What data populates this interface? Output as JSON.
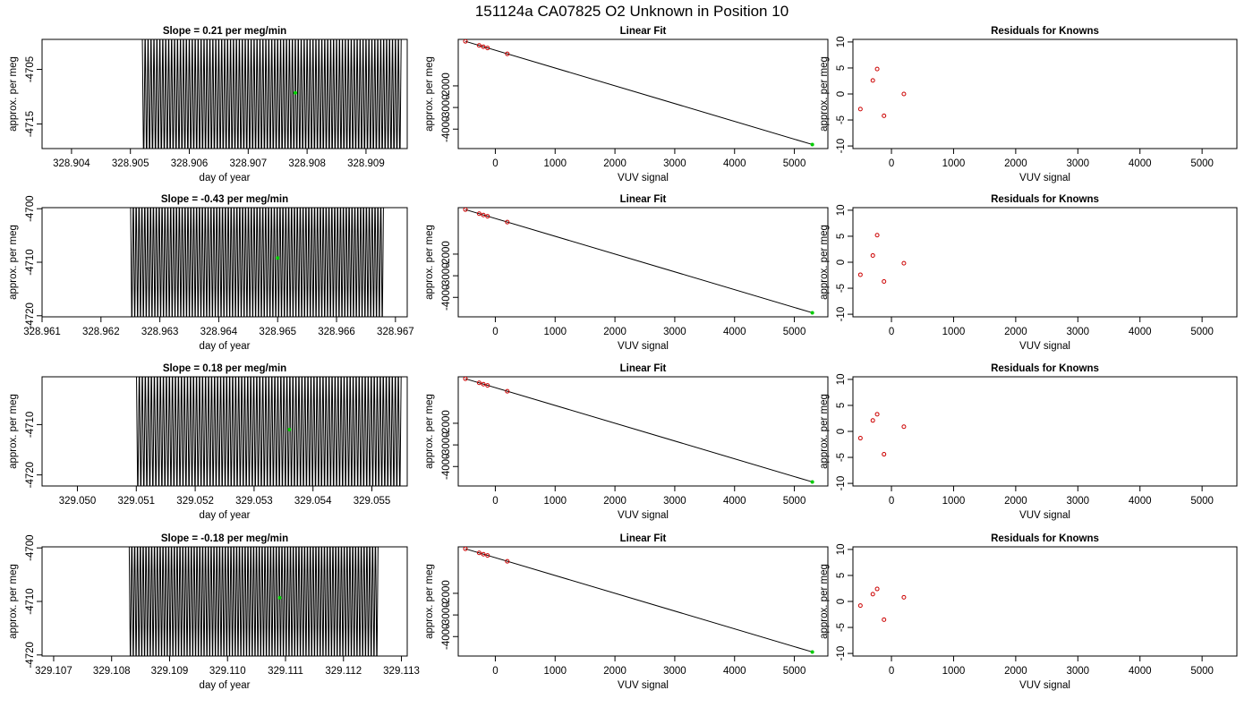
{
  "page_title": "151124a      CA07825    O2 Unknown in Position  10",
  "colors": {
    "ink": "#000000",
    "known_points": "#cc0000",
    "unknown_point": "#00cc00"
  },
  "chart_data": [
    {
      "type": "line",
      "row": 1,
      "panel": "timeseries",
      "title": "Slope =  0.21  per meg/min",
      "xlabel": "day of year",
      "ylabel": "approx. per meg",
      "xlim": [
        328.9035,
        328.9097
      ],
      "ylim": [
        -4719.5,
        -4699.5
      ],
      "xticks": [
        328.904,
        328.905,
        328.906,
        328.907,
        328.908,
        328.909
      ],
      "xtick_labels": [
        "328.904",
        "328.905",
        "328.906",
        "328.907",
        "328.908",
        "328.909"
      ],
      "yticks": [
        -4705,
        -4715
      ],
      "ytick_labels": [
        "-4705",
        "-4715"
      ],
      "series_start": 328.9052,
      "series_end": 328.9096,
      "series_mean": -4710.5,
      "series_amplitude": 14,
      "oscillations": 88,
      "unknown_point": {
        "x": 328.9078,
        "y": -4709.3
      }
    },
    {
      "type": "scatter",
      "row": 1,
      "panel": "linear_fit",
      "title": "Linear Fit",
      "xlabel": "VUV signal",
      "ylabel": "approx. per meg",
      "xlim": [
        -620,
        5560
      ],
      "ylim": [
        -4900,
        150
      ],
      "xticks": [
        0,
        1000,
        2000,
        3000,
        4000,
        5000
      ],
      "xtick_labels": [
        "0",
        "1000",
        "2000",
        "3000",
        "4000",
        "5000"
      ],
      "yticks": [
        -2000,
        -3000,
        -4000
      ],
      "ytick_labels": [
        "-2000",
        "-3000",
        "-4000"
      ],
      "fit_line": {
        "x": [
          -500,
          5300
        ],
        "y": [
          60,
          -4712
        ]
      },
      "known_points": {
        "x": [
          -500,
          -270,
          -200,
          -130,
          200
        ],
        "y": [
          60,
          -130,
          -190,
          -250,
          -520
        ]
      },
      "unknown_point": {
        "x": 5300,
        "y": -4712
      }
    },
    {
      "type": "scatter",
      "row": 1,
      "panel": "residuals",
      "title": "Residuals for Knowns",
      "xlabel": "VUV signal",
      "ylabel": "approx. per meg",
      "xlim": [
        -620,
        5560
      ],
      "ylim": [
        -10.5,
        10.5
      ],
      "xticks": [
        0,
        1000,
        2000,
        3000,
        4000,
        5000
      ],
      "xtick_labels": [
        "0",
        "1000",
        "2000",
        "3000",
        "4000",
        "5000"
      ],
      "yticks": [
        10,
        5,
        0,
        -5,
        -10
      ],
      "ytick_labels": [
        "10",
        "5",
        "0",
        "-5",
        "-10"
      ],
      "x": [
        -500,
        -300,
        -230,
        -120,
        200
      ],
      "y": [
        -2.9,
        2.6,
        4.8,
        -4.2,
        0.0
      ]
    },
    {
      "type": "line",
      "row": 2,
      "panel": "timeseries",
      "title": "Slope =  -0.43  per meg/min",
      "xlabel": "day of year",
      "ylabel": "approx. per meg",
      "xlim": [
        328.961,
        328.9672
      ],
      "ylim": [
        -4720.2,
        -4699.8
      ],
      "xticks": [
        328.961,
        328.962,
        328.963,
        328.964,
        328.965,
        328.966,
        328.967
      ],
      "xtick_labels": [
        "328.961",
        "328.962",
        "328.963",
        "328.964",
        "328.965",
        "328.966",
        "328.967"
      ],
      "yticks": [
        -4700,
        -4710,
        -4720
      ],
      "ytick_labels": [
        "-4700",
        "-4710",
        "-4720"
      ],
      "series_start": 328.9625,
      "series_end": 328.9668,
      "series_mean": -4709.5,
      "series_amplitude": 14,
      "oscillations": 88,
      "unknown_point": {
        "x": 328.965,
        "y": -4709.2
      }
    },
    {
      "type": "scatter",
      "row": 2,
      "panel": "linear_fit",
      "title": "Linear Fit",
      "xlabel": "VUV signal",
      "ylabel": "approx. per meg",
      "xlim": [
        -620,
        5560
      ],
      "ylim": [
        -4900,
        150
      ],
      "xticks": [
        0,
        1000,
        2000,
        3000,
        4000,
        5000
      ],
      "xtick_labels": [
        "0",
        "1000",
        "2000",
        "3000",
        "4000",
        "5000"
      ],
      "yticks": [
        -2000,
        -3000,
        -4000
      ],
      "ytick_labels": [
        "-2000",
        "-3000",
        "-4000"
      ],
      "fit_line": {
        "x": [
          -500,
          5300
        ],
        "y": [
          60,
          -4712
        ]
      },
      "known_points": {
        "x": [
          -500,
          -270,
          -200,
          -130,
          200
        ],
        "y": [
          60,
          -130,
          -190,
          -250,
          -520
        ]
      },
      "unknown_point": {
        "x": 5300,
        "y": -4712
      }
    },
    {
      "type": "scatter",
      "row": 2,
      "panel": "residuals",
      "title": "Residuals for Knowns",
      "xlabel": "VUV signal",
      "ylabel": "approx. per meg",
      "xlim": [
        -620,
        5560
      ],
      "ylim": [
        -10.5,
        10.5
      ],
      "xticks": [
        0,
        1000,
        2000,
        3000,
        4000,
        5000
      ],
      "xtick_labels": [
        "0",
        "1000",
        "2000",
        "3000",
        "4000",
        "5000"
      ],
      "yticks": [
        10,
        5,
        0,
        -5,
        -10
      ],
      "ytick_labels": [
        "10",
        "5",
        "0",
        "-5",
        "-10"
      ],
      "x": [
        -500,
        -300,
        -230,
        -120,
        200
      ],
      "y": [
        -2.4,
        1.3,
        5.2,
        -3.7,
        -0.2
      ]
    },
    {
      "type": "line",
      "row": 3,
      "panel": "timeseries",
      "title": "Slope =  0.18  per meg/min",
      "xlabel": "day of year",
      "ylabel": "approx. per meg",
      "xlim": [
        329.0494,
        329.0556
      ],
      "ylim": [
        -4722.2,
        -4700.5
      ],
      "xticks": [
        329.05,
        329.051,
        329.052,
        329.053,
        329.054,
        329.055
      ],
      "xtick_labels": [
        "329.050",
        "329.051",
        "329.052",
        "329.053",
        "329.054",
        "329.055"
      ],
      "yticks": [
        -4710,
        -4720
      ],
      "ytick_labels": [
        "-4710",
        "-4720"
      ],
      "series_start": 329.051,
      "series_end": 329.0555,
      "series_mean": -4711.5,
      "series_amplitude": 15,
      "oscillations": 88,
      "unknown_point": {
        "x": 329.0536,
        "y": -4711.0
      }
    },
    {
      "type": "scatter",
      "row": 3,
      "panel": "linear_fit",
      "title": "Linear Fit",
      "xlabel": "VUV signal",
      "ylabel": "approx. per meg",
      "xlim": [
        -620,
        5560
      ],
      "ylim": [
        -4900,
        150
      ],
      "xticks": [
        0,
        1000,
        2000,
        3000,
        4000,
        5000
      ],
      "xtick_labels": [
        "0",
        "1000",
        "2000",
        "3000",
        "4000",
        "5000"
      ],
      "yticks": [
        -2000,
        -3000,
        -4000
      ],
      "ytick_labels": [
        "-2000",
        "-3000",
        "-4000"
      ],
      "fit_line": {
        "x": [
          -500,
          5300
        ],
        "y": [
          60,
          -4712
        ]
      },
      "known_points": {
        "x": [
          -500,
          -270,
          -200,
          -130,
          200
        ],
        "y": [
          60,
          -130,
          -190,
          -250,
          -520
        ]
      },
      "unknown_point": {
        "x": 5300,
        "y": -4712
      }
    },
    {
      "type": "scatter",
      "row": 3,
      "panel": "residuals",
      "title": "Residuals for Knowns",
      "xlabel": "VUV signal",
      "ylabel": "approx. per meg",
      "xlim": [
        -620,
        5560
      ],
      "ylim": [
        -10.5,
        10.5
      ],
      "xticks": [
        0,
        1000,
        2000,
        3000,
        4000,
        5000
      ],
      "xtick_labels": [
        "0",
        "1000",
        "2000",
        "3000",
        "4000",
        "5000"
      ],
      "yticks": [
        10,
        5,
        0,
        -5,
        -10
      ],
      "ytick_labels": [
        "10",
        "5",
        "0",
        "-5",
        "-10"
      ],
      "x": [
        -500,
        -300,
        -230,
        -120,
        200
      ],
      "y": [
        -1.3,
        2.1,
        3.3,
        -4.4,
        0.9
      ]
    },
    {
      "type": "line",
      "row": 4,
      "panel": "timeseries",
      "title": "Slope =  -0.18  per meg/min",
      "xlabel": "day of year",
      "ylabel": "approx. per meg",
      "xlim": [
        329.1068,
        329.1131
      ],
      "ylim": [
        -4720.2,
        -4699.8
      ],
      "xticks": [
        329.107,
        329.108,
        329.109,
        329.11,
        329.111,
        329.112,
        329.113
      ],
      "xtick_labels": [
        "329.107",
        "329.108",
        "329.109",
        "329.110",
        "329.111",
        "329.112",
        "329.113"
      ],
      "yticks": [
        -4700,
        -4710,
        -4720
      ],
      "ytick_labels": [
        "-4700",
        "-4710",
        "-4720"
      ],
      "series_start": 329.1083,
      "series_end": 329.1126,
      "series_mean": -4709.5,
      "series_amplitude": 14,
      "oscillations": 88,
      "unknown_point": {
        "x": 329.1109,
        "y": -4709.3
      }
    },
    {
      "type": "scatter",
      "row": 4,
      "panel": "linear_fit",
      "title": "Linear Fit",
      "xlabel": "VUV signal",
      "ylabel": "approx. per meg",
      "xlim": [
        -620,
        5560
      ],
      "ylim": [
        -4900,
        150
      ],
      "xticks": [
        0,
        1000,
        2000,
        3000,
        4000,
        5000
      ],
      "xtick_labels": [
        "0",
        "1000",
        "2000",
        "3000",
        "4000",
        "5000"
      ],
      "yticks": [
        -2000,
        -3000,
        -4000
      ],
      "ytick_labels": [
        "-2000",
        "-3000",
        "-4000"
      ],
      "fit_line": {
        "x": [
          -500,
          5300
        ],
        "y": [
          60,
          -4712
        ]
      },
      "known_points": {
        "x": [
          -500,
          -270,
          -200,
          -130,
          200
        ],
        "y": [
          60,
          -130,
          -190,
          -250,
          -520
        ]
      },
      "unknown_point": {
        "x": 5300,
        "y": -4712
      }
    },
    {
      "type": "scatter",
      "row": 4,
      "panel": "residuals",
      "title": "Residuals for Knowns",
      "xlabel": "VUV signal",
      "ylabel": "approx. per meg",
      "xlim": [
        -620,
        5560
      ],
      "ylim": [
        -10.5,
        10.5
      ],
      "xticks": [
        0,
        1000,
        2000,
        3000,
        4000,
        5000
      ],
      "xtick_labels": [
        "0",
        "1000",
        "2000",
        "3000",
        "4000",
        "5000"
      ],
      "yticks": [
        10,
        5,
        0,
        -5,
        -10
      ],
      "ytick_labels": [
        "10",
        "5",
        "0",
        "-5",
        "-10"
      ],
      "x": [
        -500,
        -300,
        -230,
        -120,
        200
      ],
      "y": [
        -0.8,
        1.4,
        2.4,
        -3.5,
        0.8
      ]
    }
  ]
}
